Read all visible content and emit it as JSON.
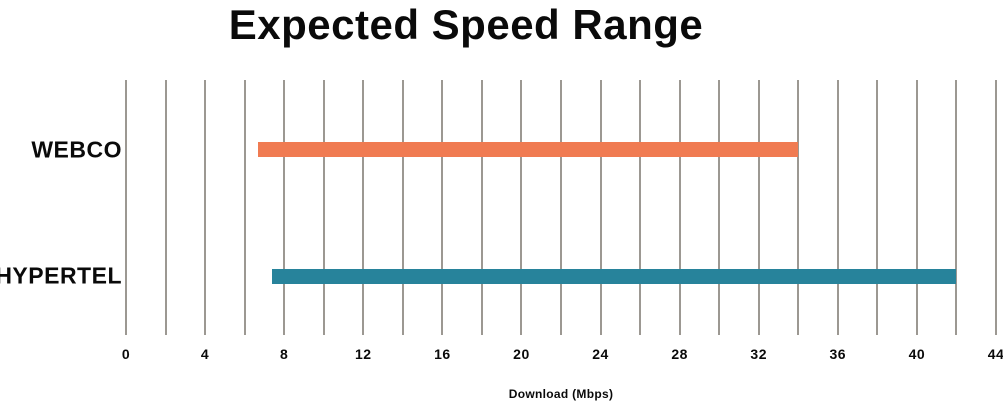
{
  "chart_data": {
    "type": "bar",
    "variant": "horizontal-range-bars",
    "title": "Expected Speed Range",
    "xlabel": "Download (Mbps)",
    "categories": [
      "WEBCO",
      "HYPERTEL"
    ],
    "series": [
      {
        "name": "WEBCO",
        "range_mbps": [
          6.7,
          34
        ],
        "color": "#F07B52"
      },
      {
        "name": "HYPERTEL",
        "range_mbps": [
          7.4,
          42
        ],
        "color": "#27839B"
      }
    ],
    "xlim": [
      0,
      44
    ],
    "x_major_ticks": [
      0,
      4,
      8,
      12,
      16,
      20,
      24,
      28,
      32,
      36,
      40,
      44
    ],
    "x_gridline_step": 2,
    "grid": true,
    "gridline_color": "#9C9892",
    "legend": "none",
    "background_color": "#FFFFFF",
    "text_color": "#0A0A0A"
  }
}
